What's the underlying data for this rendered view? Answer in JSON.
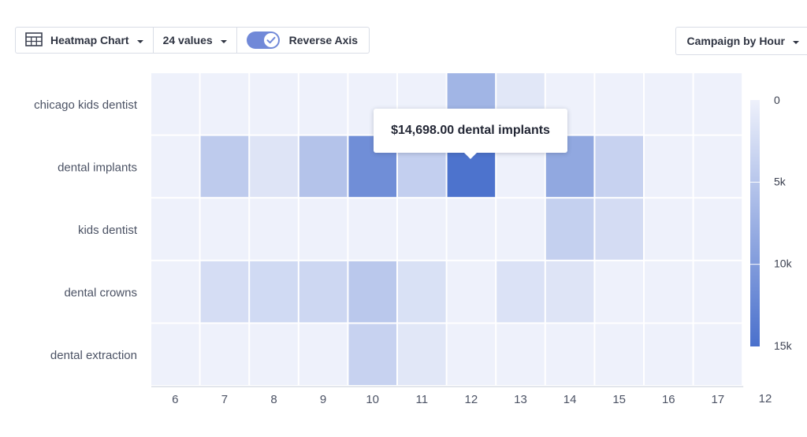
{
  "toolbar": {
    "chart_type_label": "Heatmap Chart",
    "values_label": "24 values",
    "reverse_axis_label": "Reverse Axis",
    "reverse_axis_on": true,
    "grouping_label": "Campaign by Hour"
  },
  "tooltip": {
    "text": "$14,698.00 dental implants"
  },
  "colors": {
    "low": "#eef1fb",
    "high": "#4a70cc",
    "accent": "#7189d8"
  },
  "chart_data": {
    "type": "heatmap",
    "rows": [
      "chicago kids dentist",
      "dental implants",
      "kids dentist",
      "dental crowns",
      "dental extraction"
    ],
    "columns": [
      "6",
      "7",
      "8",
      "9",
      "10",
      "11",
      "12",
      "13",
      "14",
      "15",
      "16",
      "17"
    ],
    "extra_x_label": "12",
    "values": [
      [
        0,
        0,
        0,
        0,
        0,
        0,
        7000,
        1200,
        0,
        0,
        0,
        0
      ],
      [
        0,
        4400,
        1500,
        5300,
        11500,
        3900,
        14698,
        0,
        8500,
        3600,
        0,
        0
      ],
      [
        0,
        0,
        0,
        0,
        0,
        0,
        0,
        0,
        3800,
        2400,
        0,
        0
      ],
      [
        0,
        2300,
        2700,
        3000,
        4800,
        1900,
        0,
        1700,
        1500,
        0,
        0,
        0
      ],
      [
        0,
        0,
        0,
        0,
        3600,
        1200,
        0,
        0,
        0,
        0,
        0,
        0
      ]
    ],
    "value_range": [
      0,
      15000
    ],
    "legend_ticks": [
      "0",
      "5k",
      "10k",
      "15k"
    ],
    "legend_tick_values": [
      0,
      5000,
      10000,
      15000
    ],
    "legend_position": "right"
  }
}
